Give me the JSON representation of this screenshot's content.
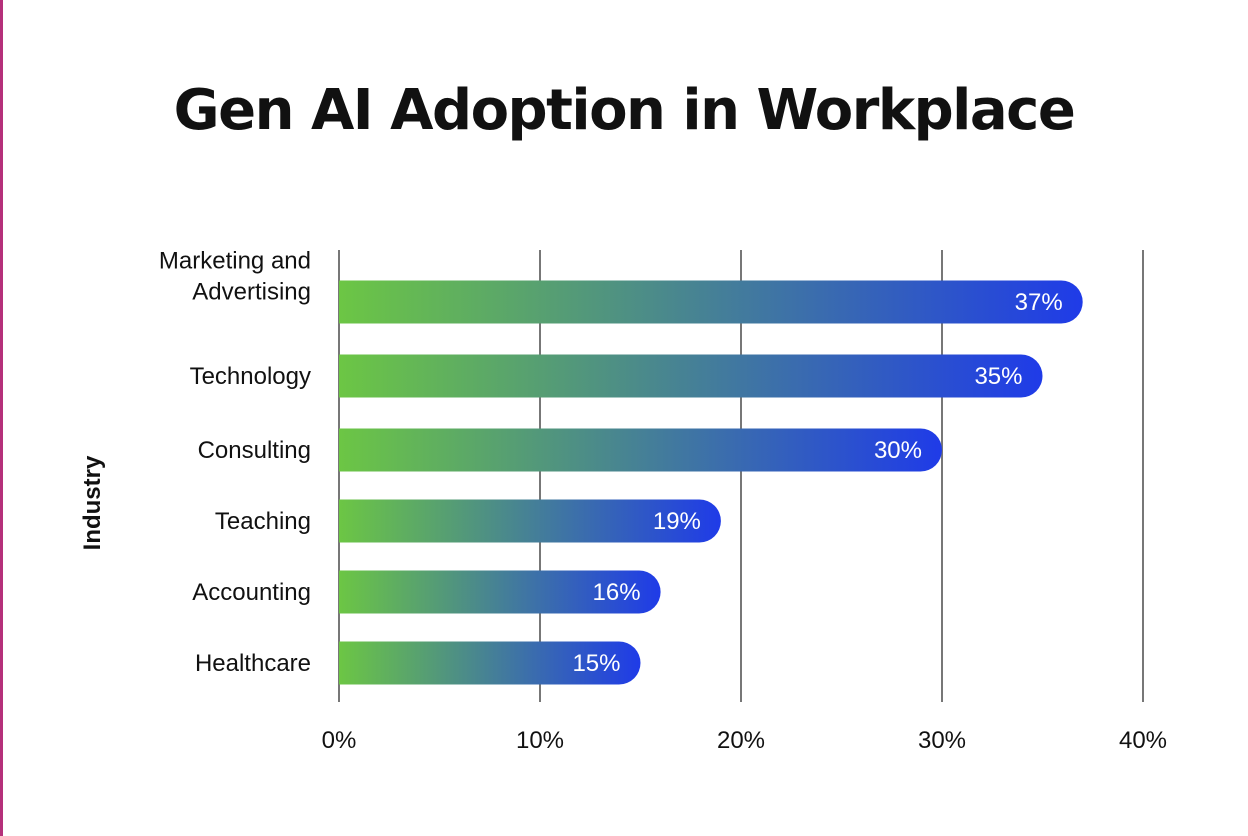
{
  "colors": {
    "bar_start": "#6cc644",
    "bar_end": "#1f3be8",
    "grid": "#777777",
    "border": "#b5307a"
  },
  "chart_data": {
    "type": "bar",
    "orientation": "horizontal",
    "title": "Gen AI Adoption in Workplace",
    "ylabel": "Industry",
    "xlabel": "",
    "categories": [
      "Marketing and Advertising",
      "Technology",
      "Consulting",
      "Teaching",
      "Accounting",
      "Healthcare"
    ],
    "category_lines": [
      [
        "Marketing and",
        "Advertising"
      ],
      [
        "Technology"
      ],
      [
        "Consulting"
      ],
      [
        "Teaching"
      ],
      [
        "Accounting"
      ],
      [
        "Healthcare"
      ]
    ],
    "values": [
      37,
      35,
      30,
      19,
      16,
      15
    ],
    "data_labels": [
      "37%",
      "35%",
      "30%",
      "19%",
      "16%",
      "15%"
    ],
    "xlim": [
      0,
      40
    ],
    "xticks": [
      0,
      10,
      20,
      30,
      40
    ],
    "xtick_labels": [
      "0%",
      "10%",
      "20%",
      "30%",
      "40%"
    ],
    "grid": "vertical",
    "legend": "none"
  }
}
